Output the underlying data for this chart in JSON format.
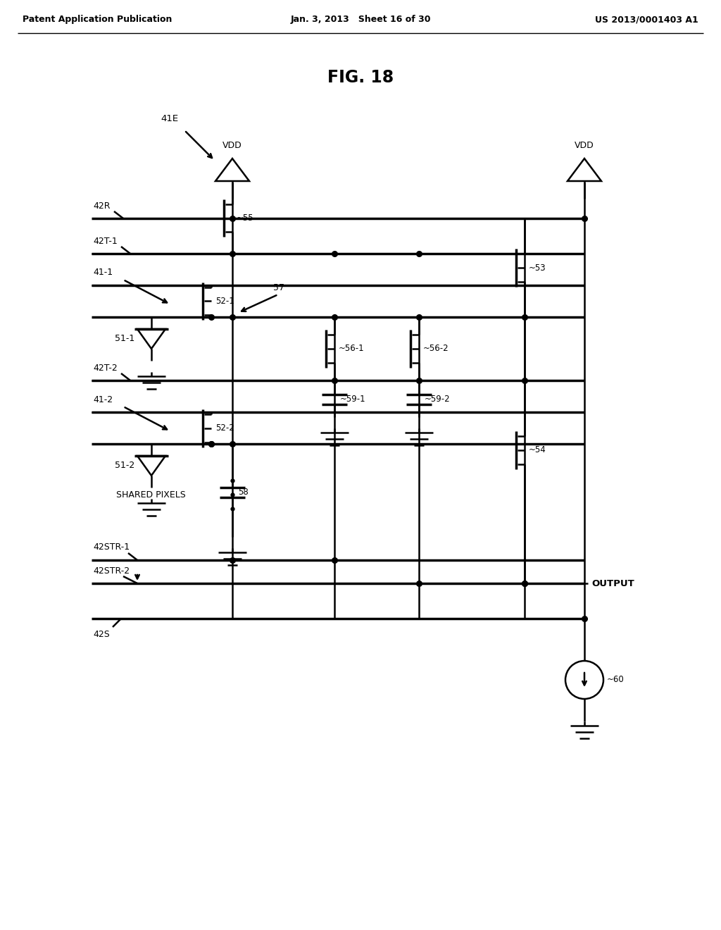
{
  "bg_color": "#ffffff",
  "line_color": "#000000",
  "header_left": "Patent Application Publication",
  "header_center": "Jan. 3, 2013   Sheet 16 of 30",
  "header_right": "US 2013/0001403 A1",
  "fig_title": "FIG. 18"
}
